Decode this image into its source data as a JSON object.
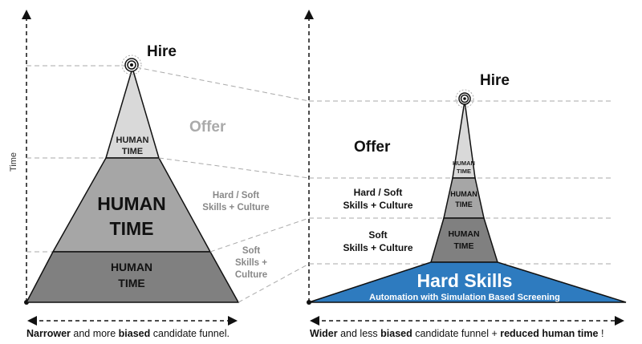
{
  "left": {
    "axis_label": "Time",
    "hire": "Hire",
    "offer": "Offer",
    "top_tier": [
      "HUMAN",
      "TIME"
    ],
    "mid_tier": [
      "HUMAN",
      "TIME"
    ],
    "bottom_tier": [
      "HUMAN",
      "TIME"
    ],
    "hard_soft": [
      "Hard / Soft",
      "Skills + Culture"
    ],
    "soft": [
      "Soft",
      "Skills +",
      "Culture"
    ],
    "caption": {
      "part1": "Narrower",
      "part2": " and more ",
      "part3": "biased",
      "part4": " candidate funnel."
    }
  },
  "right": {
    "hire": "Hire",
    "offer": "Offer",
    "top_tier": [
      "HUMAN",
      "TIME"
    ],
    "mid_tier": [
      "HUMAN",
      "TIME"
    ],
    "bottom_tier": [
      "HUMAN",
      "TIME"
    ],
    "hard_soft": [
      "Hard / Soft",
      "Skills + Culture"
    ],
    "soft": [
      "Soft",
      "Skills + Culture"
    ],
    "hard_skills": "Hard Skills",
    "automation": "Automation with Simulation Based Screening",
    "caption": {
      "part1": "Wider",
      "part2": " and less ",
      "part3": "biased",
      "part4": " candidate funnel + ",
      "part5": "reduced human time",
      "part6": " !"
    }
  },
  "colors": {
    "tier_top": "#d9d9d9",
    "tier_mid": "#a6a6a6",
    "tier_bottom": "#808080",
    "hard_skills": "#2e7bbf",
    "muted_text": "#888888",
    "dashed_line": "#aaaaaa"
  }
}
